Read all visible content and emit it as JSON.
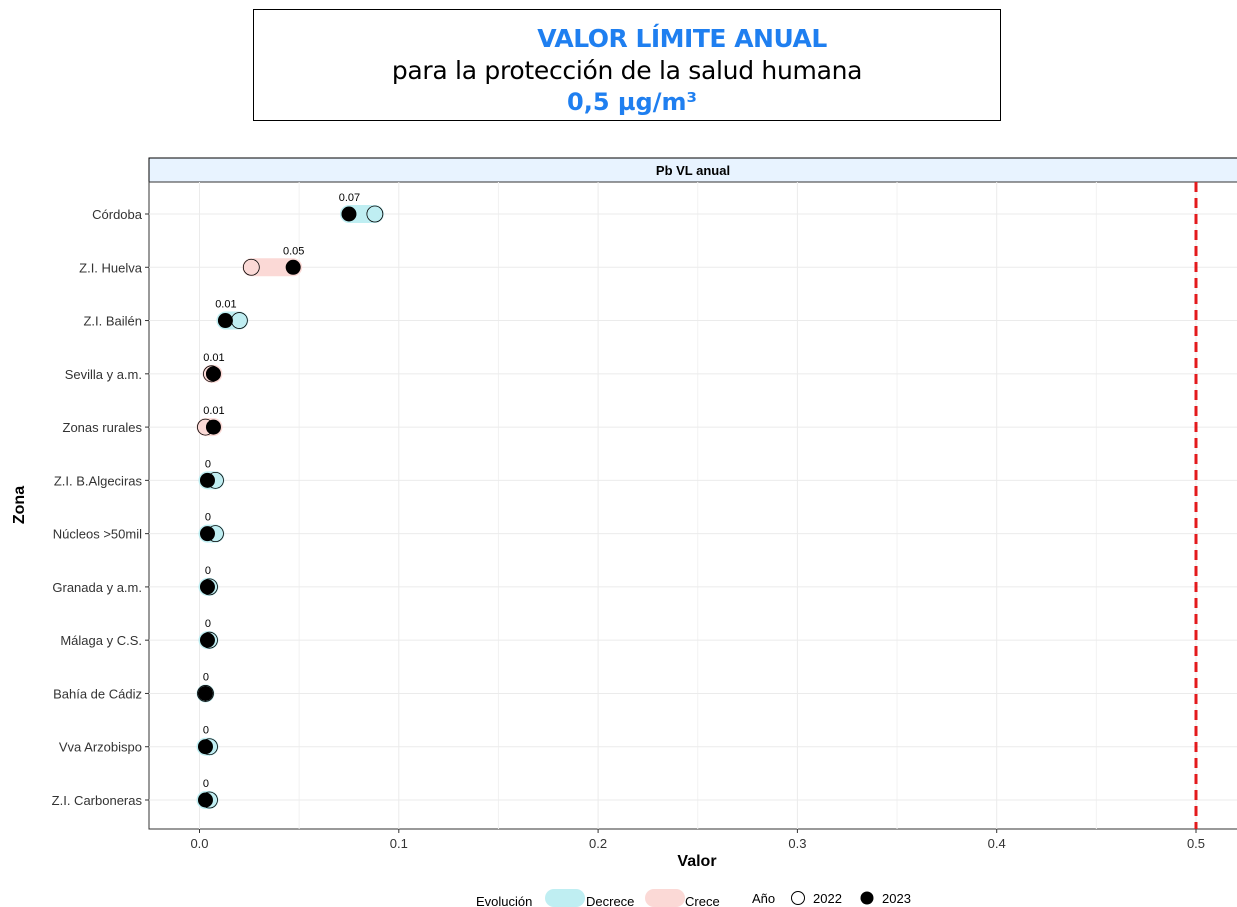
{
  "header": {
    "line1": "VALOR LÍMITE ANUAL",
    "line2": "para la protección de la salud humana",
    "line3": "0,5 µg/m³"
  },
  "chart_data": {
    "type": "dumbbell",
    "strip_title": "Pb VL anual",
    "xlabel": "Valor",
    "ylabel": "Zona",
    "xlim": [
      -0.025,
      0.52
    ],
    "x_ticks": [
      0.0,
      0.1,
      0.2,
      0.3,
      0.4,
      0.5
    ],
    "x_tick_labels": [
      "0.0",
      "0.1",
      "0.2",
      "0.3",
      "0.4",
      "0.5"
    ],
    "limit_value": 0.5,
    "limit_color": "#e31a1c",
    "colors": {
      "Decrece": "#bfeef2",
      "Crece": "#fbd9d6"
    },
    "rows": [
      {
        "zona": "Córdoba",
        "v2022": 0.088,
        "v2023": 0.075,
        "label": "0.07",
        "trend": "Decrece"
      },
      {
        "zona": "Z.I. Huelva",
        "v2022": 0.026,
        "v2023": 0.047,
        "label": "0.05",
        "trend": "Crece"
      },
      {
        "zona": "Z.I. Bailén",
        "v2022": 0.02,
        "v2023": 0.013,
        "label": "0.01",
        "trend": "Decrece"
      },
      {
        "zona": "Sevilla y a.m.",
        "v2022": 0.006,
        "v2023": 0.007,
        "label": "0.01",
        "trend": "Crece"
      },
      {
        "zona": "Zonas rurales",
        "v2022": 0.003,
        "v2023": 0.007,
        "label": "0.01",
        "trend": "Crece"
      },
      {
        "zona": "Z.I. B.Algeciras",
        "v2022": 0.008,
        "v2023": 0.004,
        "label": "0",
        "trend": "Decrece"
      },
      {
        "zona": "Núcleos >50mil",
        "v2022": 0.008,
        "v2023": 0.004,
        "label": "0",
        "trend": "Decrece"
      },
      {
        "zona": "Granada y a.m.",
        "v2022": 0.005,
        "v2023": 0.004,
        "label": "0",
        "trend": "Decrece"
      },
      {
        "zona": "Málaga y C.S.",
        "v2022": 0.005,
        "v2023": 0.004,
        "label": "0",
        "trend": "Decrece"
      },
      {
        "zona": "Bahía de Cádiz",
        "v2022": 0.003,
        "v2023": 0.003,
        "label": "0",
        "trend": "Decrece"
      },
      {
        "zona": "Vva Arzobispo",
        "v2022": 0.005,
        "v2023": 0.003,
        "label": "0",
        "trend": "Decrece"
      },
      {
        "zona": "Z.I. Carboneras",
        "v2022": 0.005,
        "v2023": 0.003,
        "label": "0",
        "trend": "Decrece"
      }
    ],
    "legend": {
      "evolucion_title": "Evolución",
      "evolucion_items": [
        "Decrece",
        "Crece"
      ],
      "anio_title": "Año",
      "anio_items": [
        "2022",
        "2023"
      ]
    }
  }
}
